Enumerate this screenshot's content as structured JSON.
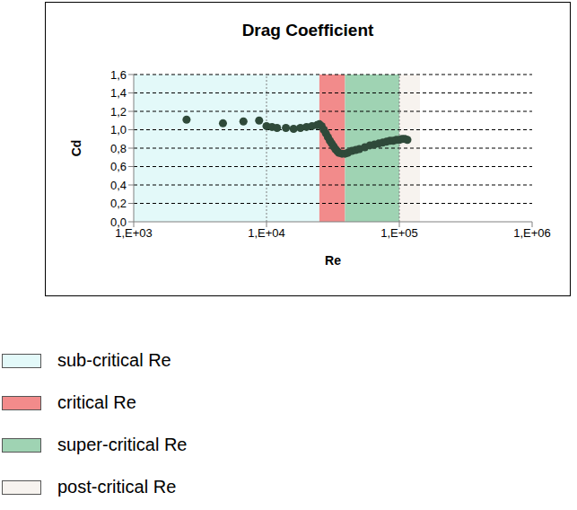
{
  "chart_data": {
    "type": "scatter",
    "title": "Drag Coefficient",
    "x_label": "Re",
    "y_label": "Cd",
    "log": "x",
    "grid": true,
    "legend": "bottom",
    "marker": "circle",
    "color": "#2f4a3a",
    "xlim": [
      1000,
      1000000
    ],
    "xticks": [
      {
        "value": 1000,
        "label": "1,E+03"
      },
      {
        "value": 10000,
        "label": "1,E+04"
      },
      {
        "value": 100000,
        "label": "1,E+05"
      },
      {
        "value": 1000000,
        "label": "1,E+06"
      }
    ],
    "ylim": [
      0,
      1.6
    ],
    "yticks": [
      {
        "value": 0,
        "label": "0,0"
      },
      {
        "value": 0.2,
        "label": "0,2"
      },
      {
        "value": 0.4,
        "label": "0,4"
      },
      {
        "value": 0.6,
        "label": "0,6"
      },
      {
        "value": 0.8,
        "label": "0,8"
      },
      {
        "value": 1.0,
        "label": "1,0"
      },
      {
        "value": 1.2,
        "label": "1,2"
      },
      {
        "value": 1.4,
        "label": "1,4"
      },
      {
        "value": 1.6,
        "label": "1,6"
      }
    ],
    "x": [
      2500,
      4700,
      6700,
      8800,
      10000,
      11000,
      12000,
      14000,
      16000,
      18000,
      20000,
      22000,
      24000,
      25000,
      26000,
      27000,
      28000,
      29000,
      30000,
      31000,
      32000,
      33000,
      34000,
      35000,
      37000,
      39000,
      41000,
      44000,
      47000,
      50000,
      55000,
      60000,
      65000,
      70000,
      75000,
      80000,
      85000,
      90000,
      95000,
      100000,
      105000,
      110000,
      115000
    ],
    "values": [
      1.11,
      1.07,
      1.09,
      1.1,
      1.04,
      1.03,
      1.02,
      1.02,
      1.01,
      1.02,
      1.03,
      1.04,
      1.05,
      1.06,
      1.04,
      1.0,
      0.96,
      0.92,
      0.88,
      0.85,
      0.82,
      0.79,
      0.77,
      0.75,
      0.74,
      0.74,
      0.75,
      0.77,
      0.78,
      0.79,
      0.81,
      0.83,
      0.84,
      0.85,
      0.86,
      0.87,
      0.88,
      0.88,
      0.89,
      0.89,
      0.9,
      0.9,
      0.89
    ],
    "bands": [
      {
        "name": "sub-critical Re",
        "from": 1000,
        "to": 25000,
        "color": "#e3f9f9"
      },
      {
        "name": "critical Re",
        "from": 25000,
        "to": 39000,
        "color": "#f28b8b"
      },
      {
        "name": "super-critical Re",
        "from": 39000,
        "to": 100000,
        "color": "#9fd3b3"
      },
      {
        "name": "post-critical Re",
        "from": 100000,
        "to": 143000,
        "color": "#f7f3ef"
      }
    ]
  }
}
